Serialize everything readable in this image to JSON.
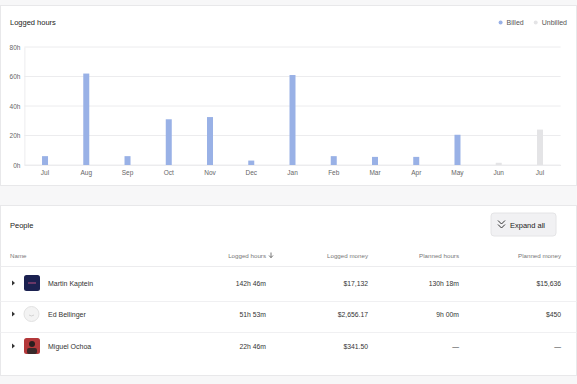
{
  "chart_data": {
    "type": "bar",
    "title": "Logged hours",
    "categories": [
      "Jul",
      "Aug",
      "Sep",
      "Oct",
      "Nov",
      "Dec",
      "Jan",
      "Feb",
      "Mar",
      "Apr",
      "May",
      "Jun",
      "Jul"
    ],
    "series": [
      {
        "name": "Billed",
        "color": "#99b1e6",
        "values": [
          6,
          62,
          6,
          31,
          32.5,
          3,
          61,
          6,
          5.5,
          5.5,
          20.5,
          0,
          0
        ]
      },
      {
        "name": "Unbilled",
        "color": "#e4e4e6",
        "values": [
          0,
          0,
          0,
          0,
          0,
          0,
          0,
          0,
          0,
          0,
          0,
          1.5,
          24
        ]
      }
    ],
    "stacked": true,
    "ylim": [
      0,
      80
    ],
    "yticks": [
      {
        "value": 0,
        "label": "0h"
      },
      {
        "value": 20,
        "label": "20h"
      },
      {
        "value": 40,
        "label": "40h"
      },
      {
        "value": 60,
        "label": "60h"
      },
      {
        "value": 80,
        "label": "80h"
      }
    ],
    "grid": true,
    "legend": "top-right"
  },
  "people": {
    "title": "People",
    "button": "Expand all",
    "columns": [
      "Name",
      "Logged hours",
      "Logged money",
      "Planned hours",
      "Planned money"
    ],
    "rows": [
      [
        "Martin Kaptein",
        "142h 46m",
        "$17,132",
        "130h 18m",
        "$15,636"
      ],
      [
        "Ed Bellinger",
        "51h 53m",
        "$2,656.17",
        "9h 00m",
        "$450"
      ],
      [
        "Miguel Ochoa",
        "22h 46m",
        "$341.50",
        "—",
        "—"
      ]
    ]
  }
}
